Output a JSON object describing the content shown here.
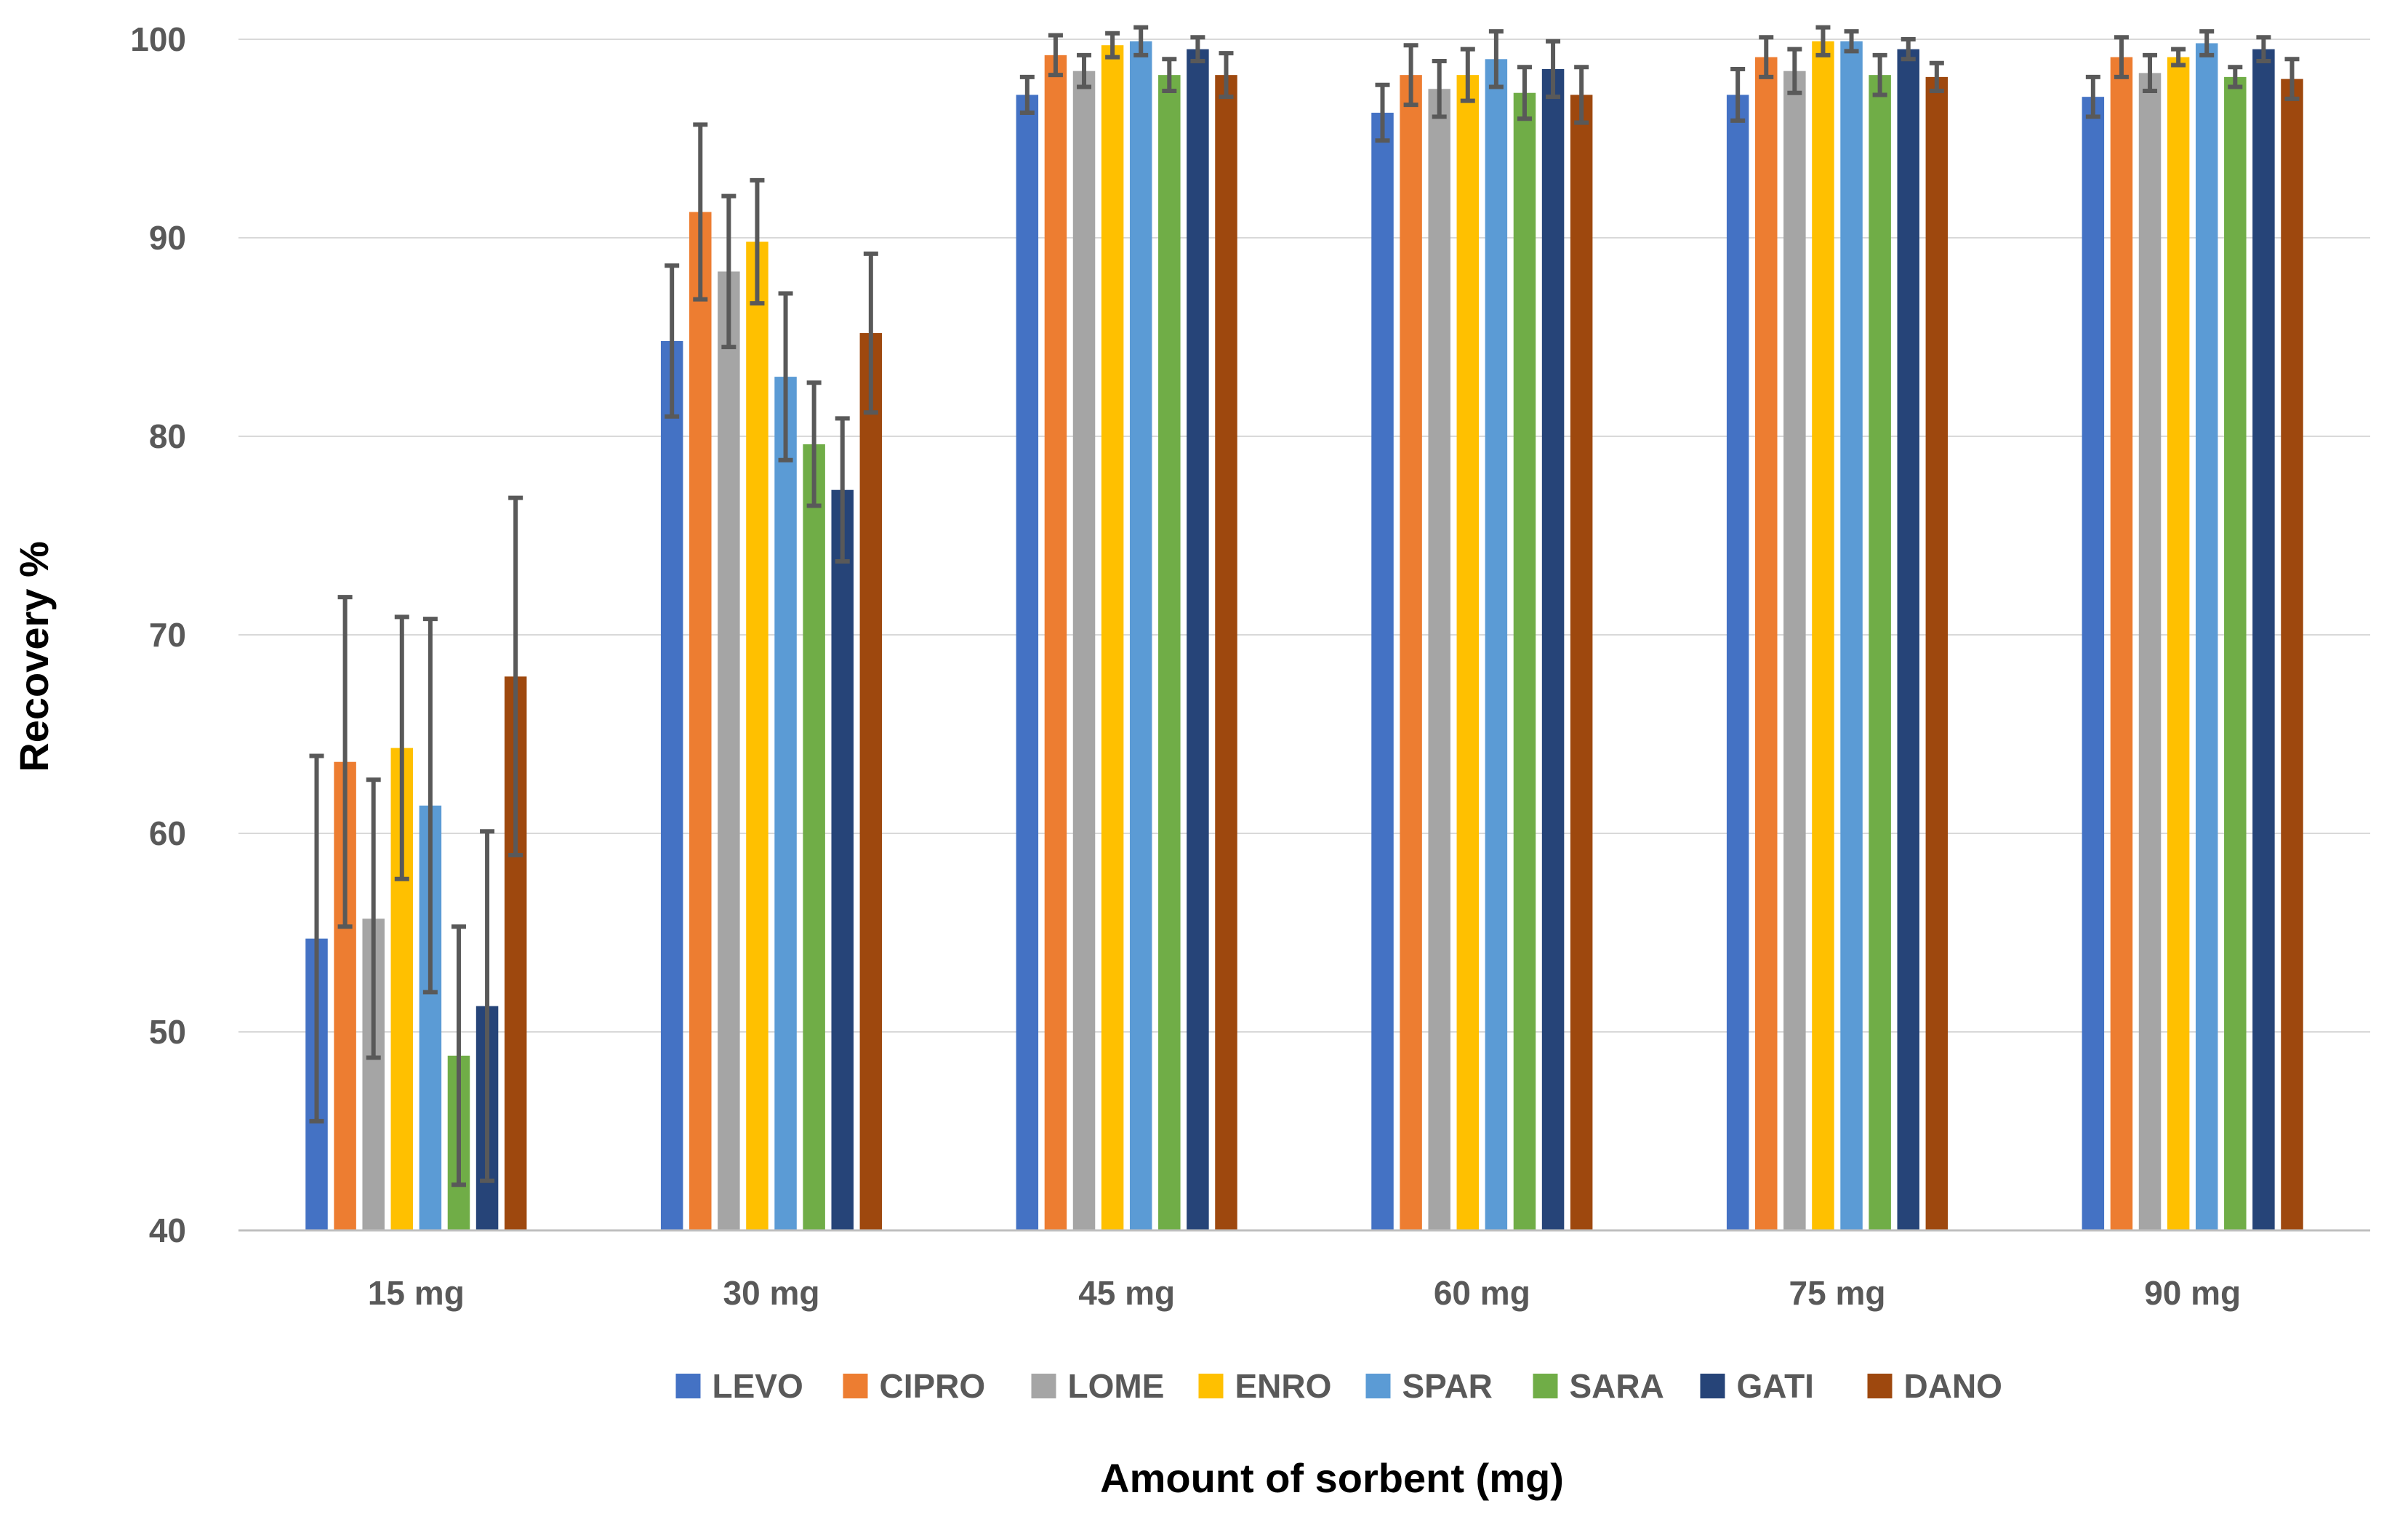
{
  "chart_data": {
    "type": "bar",
    "title": "",
    "xlabel": "Amount of sorbent (mg)",
    "ylabel": "Recovery %",
    "ylim": [
      40,
      100
    ],
    "yticks": [
      40,
      50,
      60,
      70,
      80,
      90,
      100
    ],
    "grid": true,
    "legend_position": "bottom",
    "categories": [
      "15 mg",
      "30 mg",
      "45 mg",
      "60 mg",
      "75 mg",
      "90 mg"
    ],
    "series": [
      {
        "name": "LEVO",
        "color": "#4472C4",
        "values": [
          54.7,
          84.8,
          97.2,
          96.3,
          97.2,
          97.1
        ],
        "errors": [
          9.2,
          3.8,
          0.9,
          1.4,
          1.3,
          1.0
        ]
      },
      {
        "name": "CIPRO",
        "color": "#ED7D31",
        "values": [
          63.6,
          91.3,
          99.2,
          98.2,
          99.1,
          99.1
        ],
        "errors": [
          8.3,
          4.4,
          1.0,
          1.5,
          1.0,
          1.0
        ]
      },
      {
        "name": "LOME",
        "color": "#A5A5A5",
        "values": [
          55.7,
          88.3,
          98.4,
          97.5,
          98.4,
          98.3
        ],
        "errors": [
          7.0,
          3.8,
          0.8,
          1.4,
          1.1,
          0.9
        ]
      },
      {
        "name": "ENRO",
        "color": "#FFC000",
        "values": [
          64.3,
          89.8,
          99.7,
          98.2,
          99.9,
          99.1
        ],
        "errors": [
          6.6,
          3.1,
          0.6,
          1.3,
          0.7,
          0.4
        ]
      },
      {
        "name": "SPAR",
        "color": "#5B9BD5",
        "values": [
          61.4,
          83.0,
          99.9,
          99.0,
          99.9,
          99.8
        ],
        "errors": [
          9.4,
          4.2,
          0.7,
          1.4,
          0.5,
          0.6
        ]
      },
      {
        "name": "SARA",
        "color": "#70AD47",
        "values": [
          48.8,
          79.6,
          98.2,
          97.3,
          98.2,
          98.1
        ],
        "errors": [
          6.5,
          3.1,
          0.8,
          1.3,
          1.0,
          0.5
        ]
      },
      {
        "name": "GATI",
        "color": "#264478",
        "values": [
          51.3,
          77.3,
          99.5,
          98.5,
          99.5,
          99.5
        ],
        "errors": [
          8.8,
          3.6,
          0.6,
          1.4,
          0.5,
          0.6
        ]
      },
      {
        "name": "DANO",
        "color": "#9E480E",
        "values": [
          67.9,
          85.2,
          98.2,
          97.2,
          98.1,
          98.0
        ],
        "errors": [
          9.0,
          4.0,
          1.1,
          1.4,
          0.7,
          1.0
        ]
      }
    ]
  }
}
